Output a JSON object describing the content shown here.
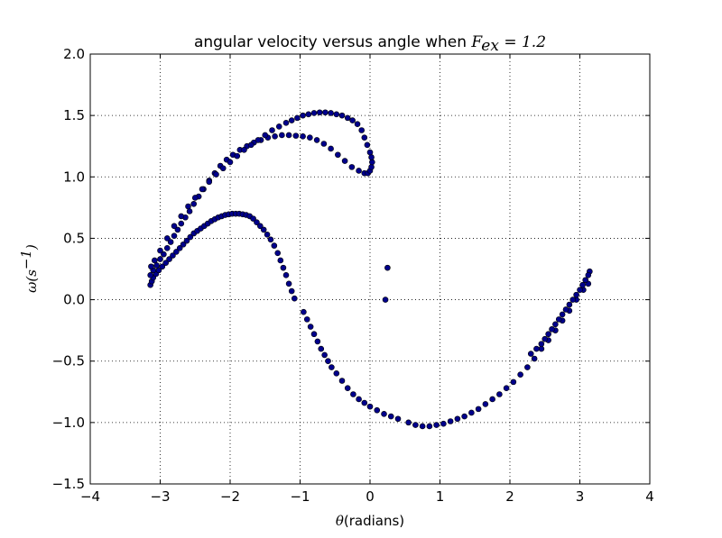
{
  "chart_data": {
    "type": "scatter",
    "title_text": "angular velocity versus angle when ",
    "title_math": "F",
    "title_math_sub": "ex",
    "title_math_tail": " = 1.2",
    "xlabel_math": "θ",
    "xlabel_text": "(radians)",
    "ylabel_math": "ω(s",
    "ylabel_math_sup": "−1",
    "ylabel_math_tail": ")",
    "xlim": [
      -4,
      4
    ],
    "ylim": [
      -1.5,
      2.0
    ],
    "xticks": [
      -4,
      -3,
      -2,
      -1,
      0,
      1,
      2,
      3,
      4
    ],
    "yticks": [
      -1.5,
      -1.0,
      -0.5,
      0.0,
      0.5,
      1.0,
      1.5,
      2.0
    ],
    "xtick_labels": [
      "−4",
      "−3",
      "−2",
      "−1",
      "0",
      "1",
      "2",
      "3",
      "4"
    ],
    "ytick_labels": [
      "−1.5",
      "−1.0",
      "−0.5",
      "0.0",
      "0.5",
      "1.0",
      "1.5",
      "2.0"
    ],
    "grid": true,
    "marker_color": "#00008b",
    "series": [
      {
        "points": [
          [
            -3.14,
            0.12
          ],
          [
            -3.12,
            0.15
          ],
          [
            -3.1,
            0.18
          ],
          [
            -3.06,
            0.21
          ],
          [
            -3.02,
            0.24
          ],
          [
            -2.97,
            0.27
          ],
          [
            -2.92,
            0.3
          ],
          [
            -2.87,
            0.33
          ],
          [
            -2.82,
            0.36
          ],
          [
            -2.77,
            0.39
          ],
          [
            -2.72,
            0.42
          ],
          [
            -2.67,
            0.45
          ],
          [
            -2.62,
            0.48
          ],
          [
            -2.57,
            0.51
          ],
          [
            -2.52,
            0.54
          ],
          [
            -2.47,
            0.56
          ],
          [
            -2.42,
            0.58
          ],
          [
            -2.37,
            0.6
          ],
          [
            -2.32,
            0.62
          ],
          [
            -2.27,
            0.64
          ],
          [
            -2.22,
            0.655
          ],
          [
            -2.17,
            0.67
          ],
          [
            -2.12,
            0.68
          ],
          [
            -2.07,
            0.69
          ],
          [
            -2.02,
            0.695
          ],
          [
            -1.97,
            0.7
          ],
          [
            -1.92,
            0.7
          ],
          [
            -1.87,
            0.7
          ],
          [
            -1.82,
            0.695
          ],
          [
            -1.77,
            0.69
          ],
          [
            -1.72,
            0.68
          ],
          [
            -1.67,
            0.66
          ],
          [
            -1.62,
            0.63
          ],
          [
            -1.57,
            0.6
          ],
          [
            -1.52,
            0.57
          ],
          [
            -1.47,
            0.53
          ],
          [
            -1.42,
            0.49
          ],
          [
            -1.37,
            0.44
          ],
          [
            -1.32,
            0.38
          ],
          [
            -1.28,
            0.32
          ],
          [
            -1.24,
            0.26
          ],
          [
            -1.2,
            0.2
          ],
          [
            -1.16,
            0.13
          ],
          [
            -1.12,
            0.07
          ],
          [
            -1.08,
            0.01
          ],
          [
            -0.95,
            -0.1
          ],
          [
            -0.9,
            -0.16
          ],
          [
            -0.85,
            -0.22
          ],
          [
            -0.8,
            -0.28
          ],
          [
            -0.75,
            -0.34
          ],
          [
            -0.7,
            -0.4
          ],
          [
            -0.65,
            -0.45
          ],
          [
            -0.6,
            -0.5
          ],
          [
            -0.55,
            -0.55
          ],
          [
            -0.48,
            -0.6
          ],
          [
            -0.4,
            -0.66
          ],
          [
            -0.32,
            -0.72
          ],
          [
            -0.24,
            -0.77
          ],
          [
            -0.16,
            -0.81
          ],
          [
            -0.08,
            -0.84
          ],
          [
            0.0,
            -0.87
          ],
          [
            0.1,
            -0.9
          ],
          [
            0.2,
            -0.93
          ],
          [
            0.3,
            -0.95
          ],
          [
            0.4,
            -0.97
          ],
          [
            0.55,
            -1.0
          ],
          [
            0.65,
            -1.02
          ],
          [
            0.75,
            -1.03
          ],
          [
            0.85,
            -1.03
          ],
          [
            0.95,
            -1.02
          ],
          [
            1.05,
            -1.01
          ],
          [
            1.15,
            -0.99
          ],
          [
            1.25,
            -0.97
          ],
          [
            1.35,
            -0.95
          ],
          [
            1.45,
            -0.92
          ],
          [
            1.55,
            -0.89
          ],
          [
            1.65,
            -0.85
          ],
          [
            1.75,
            -0.81
          ],
          [
            1.85,
            -0.77
          ],
          [
            1.95,
            -0.72
          ],
          [
            2.05,
            -0.67
          ],
          [
            2.15,
            -0.61
          ],
          [
            2.25,
            -0.55
          ],
          [
            2.35,
            -0.48
          ],
          [
            2.45,
            -0.4
          ],
          [
            2.55,
            -0.33
          ],
          [
            2.65,
            -0.25
          ],
          [
            2.75,
            -0.17
          ],
          [
            2.85,
            -0.09
          ],
          [
            2.95,
            0.0
          ],
          [
            3.05,
            0.08
          ],
          [
            3.12,
            0.13
          ]
        ]
      },
      {
        "points": [
          [
            -3.14,
            0.2
          ],
          [
            -3.1,
            0.24
          ],
          [
            -3.05,
            0.28
          ],
          [
            -3.0,
            0.33
          ],
          [
            -2.95,
            0.37
          ],
          [
            -2.9,
            0.42
          ],
          [
            -2.85,
            0.47
          ],
          [
            -2.8,
            0.52
          ],
          [
            -2.75,
            0.57
          ],
          [
            -2.7,
            0.62
          ],
          [
            -2.64,
            0.67
          ],
          [
            -2.58,
            0.72
          ],
          [
            -2.52,
            0.78
          ],
          [
            -2.45,
            0.84
          ],
          [
            -2.38,
            0.9
          ],
          [
            -2.3,
            0.97
          ],
          [
            -2.22,
            1.03
          ],
          [
            -2.14,
            1.09
          ],
          [
            -2.05,
            1.14
          ],
          [
            -1.96,
            1.18
          ],
          [
            -1.86,
            1.22
          ],
          [
            -1.76,
            1.25
          ],
          [
            -1.66,
            1.28
          ],
          [
            -1.56,
            1.3
          ],
          [
            -1.46,
            1.32
          ],
          [
            -1.36,
            1.33
          ],
          [
            -1.26,
            1.34
          ],
          [
            -1.16,
            1.34
          ],
          [
            -1.06,
            1.335
          ],
          [
            -0.96,
            1.33
          ],
          [
            -0.86,
            1.32
          ],
          [
            -0.76,
            1.3
          ],
          [
            -0.66,
            1.27
          ],
          [
            -0.56,
            1.23
          ],
          [
            -0.46,
            1.18
          ],
          [
            -0.36,
            1.13
          ],
          [
            -0.26,
            1.08
          ],
          [
            -0.16,
            1.05
          ],
          [
            -0.08,
            1.03
          ],
          [
            -0.03,
            1.03
          ],
          [
            0.0,
            1.05
          ],
          [
            0.02,
            1.08
          ],
          [
            0.03,
            1.12
          ],
          [
            0.02,
            1.16
          ],
          [
            0.0,
            1.2
          ],
          [
            -0.04,
            1.26
          ],
          [
            -0.08,
            1.32
          ],
          [
            -0.12,
            1.38
          ],
          [
            -0.18,
            1.43
          ],
          [
            -0.25,
            1.46
          ],
          [
            -0.32,
            1.48
          ],
          [
            -0.4,
            1.5
          ],
          [
            -0.48,
            1.51
          ],
          [
            -0.56,
            1.52
          ],
          [
            -0.64,
            1.525
          ],
          [
            -0.72,
            1.525
          ],
          [
            -0.8,
            1.52
          ],
          [
            -0.88,
            1.51
          ],
          [
            -0.96,
            1.5
          ],
          [
            -1.04,
            1.48
          ],
          [
            -1.12,
            1.46
          ],
          [
            -1.2,
            1.44
          ],
          [
            -1.3,
            1.41
          ],
          [
            -1.4,
            1.38
          ],
          [
            -1.5,
            1.34
          ],
          [
            -1.6,
            1.3
          ],
          [
            -1.7,
            1.26
          ],
          [
            -1.8,
            1.22
          ],
          [
            -1.9,
            1.17
          ],
          [
            -2.0,
            1.12
          ],
          [
            -2.1,
            1.07
          ],
          [
            -2.2,
            1.02
          ],
          [
            -2.3,
            0.96
          ],
          [
            -2.4,
            0.9
          ],
          [
            -2.5,
            0.83
          ],
          [
            -2.6,
            0.76
          ],
          [
            -2.7,
            0.68
          ],
          [
            -2.8,
            0.6
          ],
          [
            -2.9,
            0.5
          ],
          [
            -3.0,
            0.4
          ],
          [
            -3.08,
            0.32
          ],
          [
            -3.13,
            0.27
          ]
        ]
      },
      {
        "points": [
          [
            3.14,
            0.23
          ],
          [
            3.12,
            0.2
          ],
          [
            3.08,
            0.16
          ],
          [
            3.04,
            0.12
          ],
          [
            3.0,
            0.08
          ],
          [
            2.95,
            0.04
          ],
          [
            2.9,
            0.0
          ],
          [
            2.85,
            -0.04
          ],
          [
            2.8,
            -0.08
          ],
          [
            2.75,
            -0.12
          ],
          [
            2.7,
            -0.16
          ],
          [
            2.65,
            -0.2
          ],
          [
            2.6,
            -0.24
          ],
          [
            2.55,
            -0.28
          ],
          [
            2.5,
            -0.32
          ],
          [
            2.45,
            -0.36
          ],
          [
            2.38,
            -0.4
          ],
          [
            2.3,
            -0.44
          ],
          [
            0.25,
            0.26
          ],
          [
            0.22,
            0.0
          ]
        ]
      }
    ]
  }
}
